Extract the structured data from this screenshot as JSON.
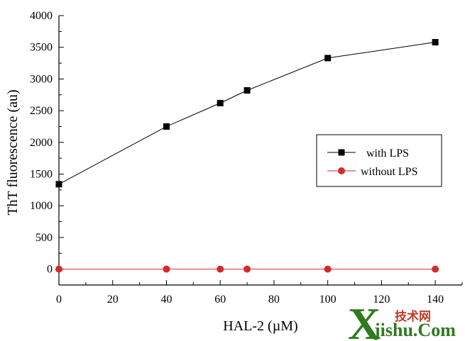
{
  "chart_data": {
    "type": "line",
    "xlabel": "HAL-2 (µM)",
    "ylabel": "ThT fluorescence (au)",
    "xlim": [
      0,
      150
    ],
    "ylim": [
      -250,
      4000
    ],
    "xticks": [
      0,
      20,
      40,
      60,
      80,
      100,
      120,
      140
    ],
    "yticks": [
      0,
      500,
      1000,
      1500,
      2000,
      2500,
      3000,
      3500,
      4000
    ],
    "grid": false,
    "legend_position": "right",
    "series": [
      {
        "name": "with LPS",
        "marker": "square",
        "color": "#000000",
        "x": [
          0,
          40,
          60,
          70,
          100,
          140
        ],
        "y": [
          1340,
          2250,
          2620,
          2820,
          3330,
          3580
        ]
      },
      {
        "name": "without LPS",
        "marker": "circle",
        "color": "#d42a2a",
        "x": [
          0,
          40,
          60,
          70,
          100,
          140
        ],
        "y": [
          0,
          0,
          0,
          0,
          0,
          0
        ]
      }
    ]
  },
  "watermark": {
    "cn": "技术网",
    "big": "X",
    "latin": "jishu.Com"
  }
}
